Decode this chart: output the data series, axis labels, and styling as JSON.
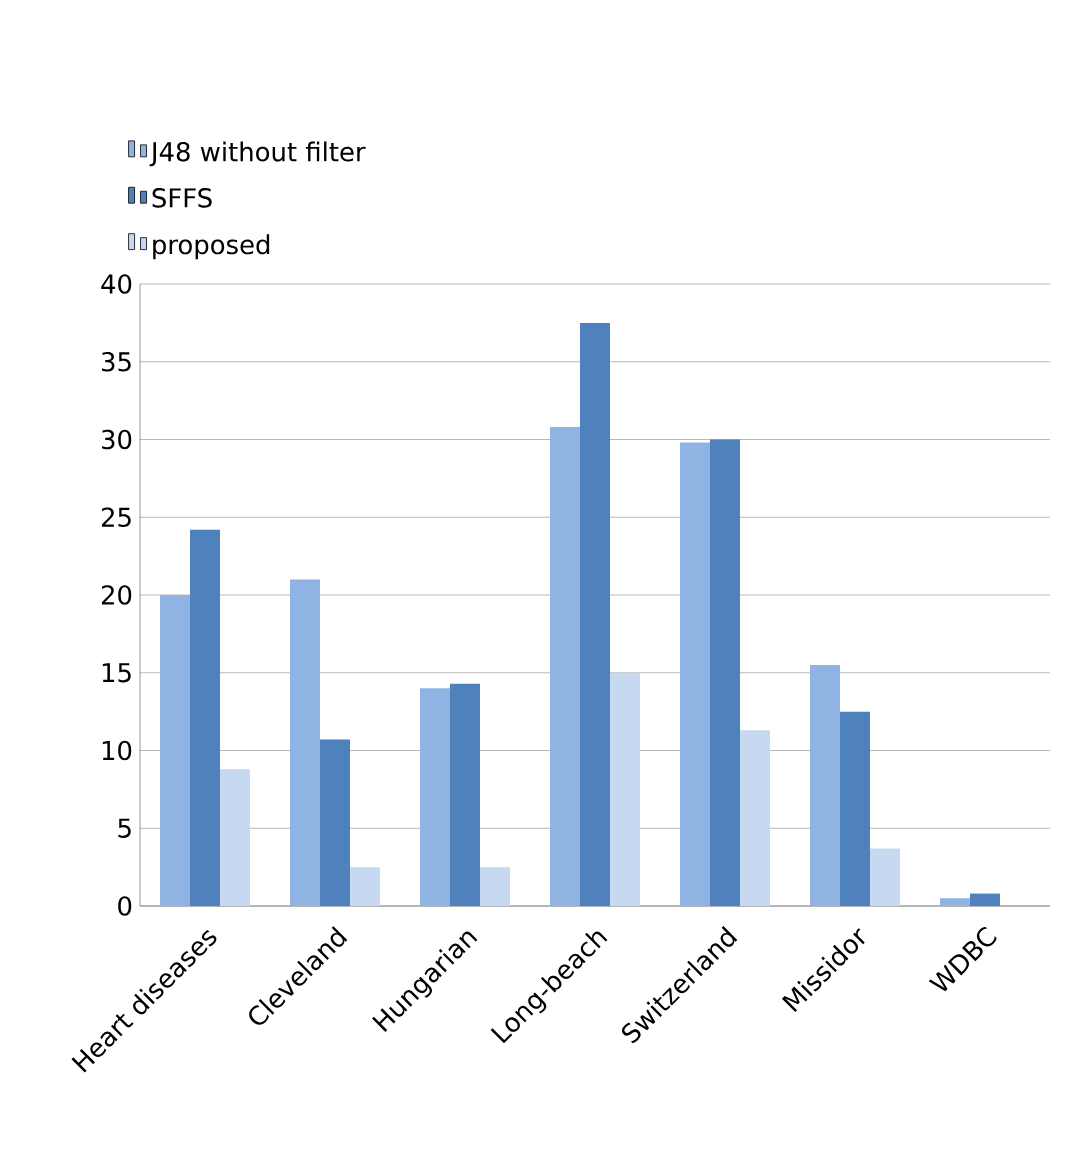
{
  "chart_data": {
    "type": "bar",
    "categories": [
      "Heart diseases",
      "Cleveland",
      "Hungarian",
      "Long-beach",
      "Switzerland",
      "Missidor",
      "WDBC"
    ],
    "series": [
      {
        "name": "J48 without filter",
        "color": "#8fb4e3",
        "values": [
          20,
          21,
          14,
          30.8,
          29.8,
          15.5,
          0.5
        ]
      },
      {
        "name": "SFFS",
        "color": "#4f81bd",
        "values": [
          24.2,
          10.7,
          14.3,
          37.5,
          30,
          12.5,
          0.8
        ]
      },
      {
        "name": "proposed",
        "color": "#c6d9f1",
        "values": [
          8.8,
          2.5,
          2.5,
          15,
          11.3,
          3.7,
          0
        ]
      }
    ],
    "ylim": [
      0,
      40
    ],
    "yticks": [
      0,
      5,
      10,
      15,
      20,
      25,
      30,
      35,
      40
    ],
    "grid": "y",
    "legend": "top left"
  }
}
